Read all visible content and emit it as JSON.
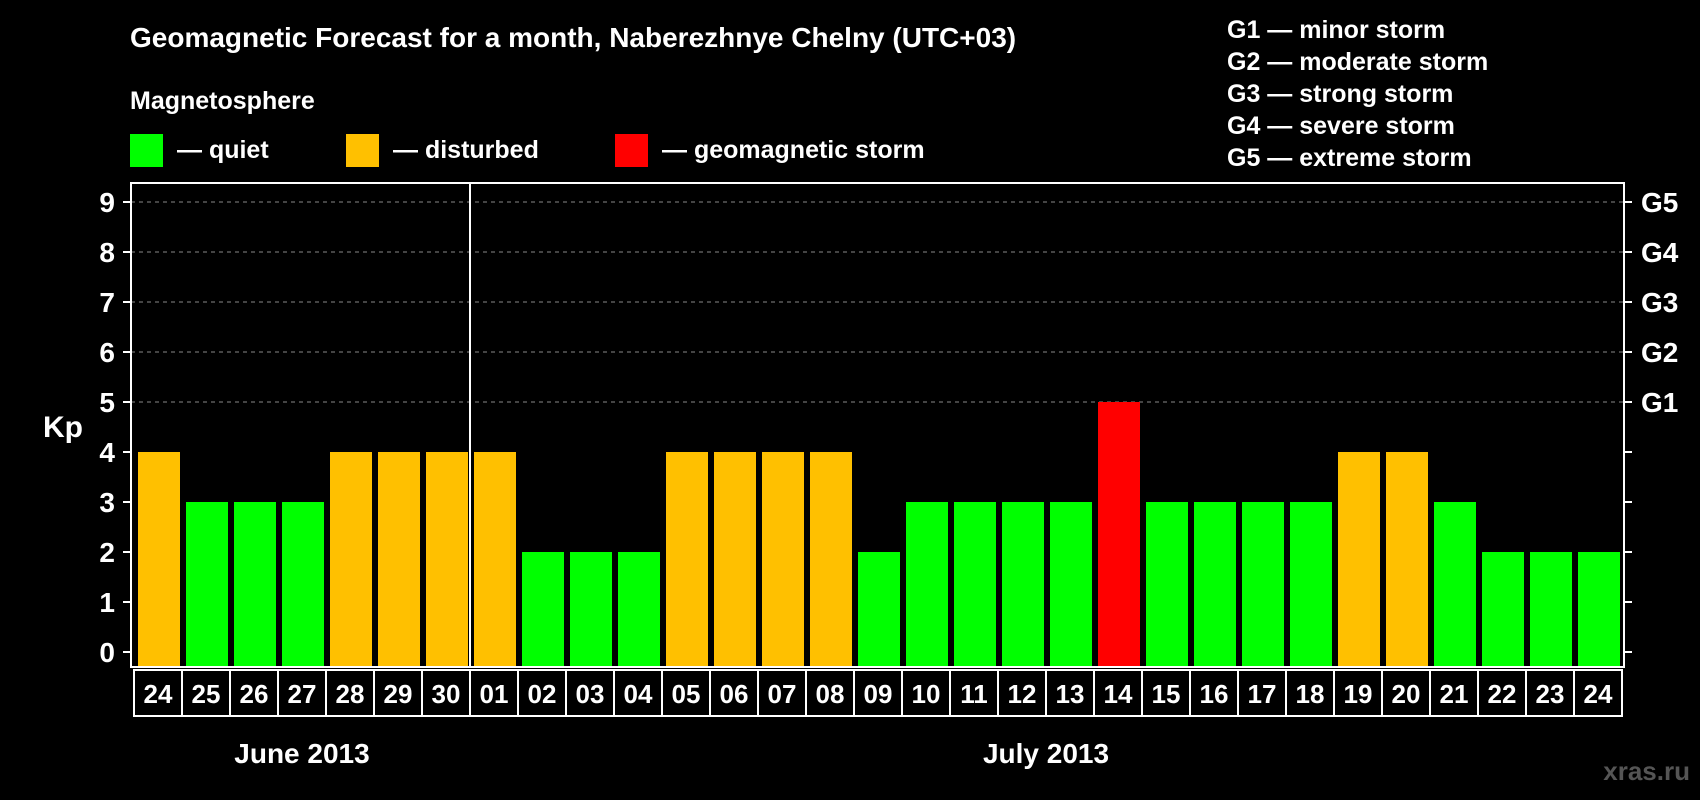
{
  "chart_data": {
    "type": "bar",
    "title": "Geomagnetic Forecast for a month, Naberezhnye Chelny (UTC+03)",
    "ylabel": "Kp",
    "ylim": [
      0,
      9
    ],
    "y_ticks": [
      "0",
      "1",
      "2",
      "3",
      "4",
      "5",
      "6",
      "7",
      "8",
      "9"
    ],
    "right_ticks": [
      {
        "level": 5,
        "label": "G1"
      },
      {
        "level": 6,
        "label": "G2"
      },
      {
        "level": 7,
        "label": "G3"
      },
      {
        "level": 8,
        "label": "G4"
      },
      {
        "level": 9,
        "label": "G5"
      }
    ],
    "categories": [
      "24",
      "25",
      "26",
      "27",
      "28",
      "29",
      "30",
      "01",
      "02",
      "03",
      "04",
      "05",
      "06",
      "07",
      "08",
      "09",
      "10",
      "11",
      "12",
      "13",
      "14",
      "15",
      "16",
      "17",
      "18",
      "19",
      "20",
      "21",
      "22",
      "23",
      "24"
    ],
    "values": [
      4,
      3,
      3,
      3,
      4,
      4,
      4,
      4,
      2,
      2,
      2,
      4,
      4,
      4,
      4,
      2,
      3,
      3,
      3,
      3,
      5,
      3,
      3,
      3,
      3,
      4,
      4,
      3,
      2,
      2,
      2
    ],
    "months": [
      {
        "label": "June 2013",
        "start": 0,
        "end": 6
      },
      {
        "label": "July 2013",
        "start": 7,
        "end": 30
      }
    ],
    "legend": {
      "heading": "Magnetosphere",
      "items": [
        {
          "label": "— quiet",
          "color": "#00ff00"
        },
        {
          "label": "— disturbed",
          "color": "#ffc000"
        },
        {
          "label": "— geomagnetic storm",
          "color": "#ff0000"
        }
      ]
    },
    "storm_scale": [
      "G1 — minor storm",
      "G2 — moderate storm",
      "G3 — strong storm",
      "G4 — severe storm",
      "G5 — extreme storm"
    ],
    "grid": true
  },
  "watermark": "xras.ru",
  "colors": {
    "quiet": "#00ff00",
    "disturbed": "#ffc000",
    "storm": "#ff0000",
    "background": "#000000",
    "foreground": "#ffffff",
    "grid": "#888888"
  }
}
